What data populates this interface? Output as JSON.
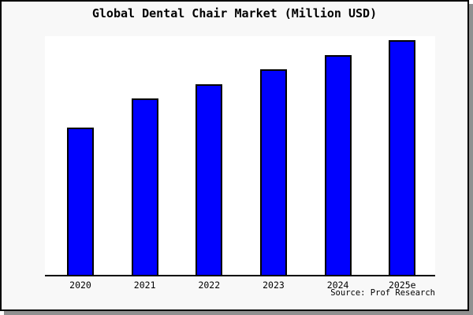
{
  "title": "Global Dental Chair Market (Million USD)",
  "source_credit": "Source: Prof Research",
  "colors": {
    "bar_fill": "#0000fe",
    "bar_edge": "#000000",
    "figure_bg": "#f8f8f8",
    "plot_bg": "#ffffff",
    "axis": "#000000",
    "frame_border": "#000000",
    "frame_shadow": "#909090",
    "text": "#000000"
  },
  "chart_data": {
    "type": "bar",
    "title": "Global Dental Chair Market (Million USD)",
    "categories": [
      "2020",
      "2021",
      "2022",
      "2023",
      "2024",
      "2025e"
    ],
    "values": [
      62.8,
      75.1,
      81.4,
      87.7,
      93.7,
      100
    ],
    "value_note": "No y-axis or value labels are shown in the chart; values are relative bar heights read from pixels, normalized so 2025e = 100",
    "ylim": [
      0,
      101.7
    ],
    "xlabel": "",
    "ylabel": "",
    "grid": false,
    "legend": null,
    "series_color": "#0000fe",
    "source": "Source: Prof Research"
  }
}
